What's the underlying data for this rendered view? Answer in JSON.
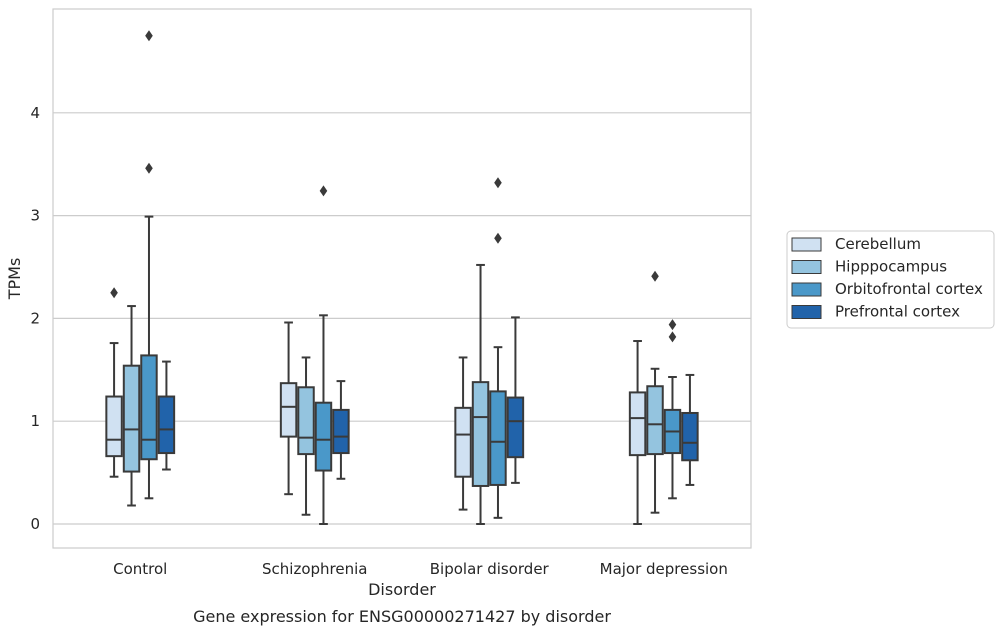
{
  "chart_data": {
    "type": "box",
    "xlabel": "Disorder",
    "ylabel": "TPMs",
    "caption": "Gene expression for ENSG00000271427 by disorder",
    "ylim": [
      -0.23,
      5.0
    ],
    "yticks": [
      0,
      1,
      2,
      3,
      4
    ],
    "grid": "horizontal",
    "legend_position": "right",
    "categories": [
      "Control",
      "Schizophrenia",
      "Bipolar disorder",
      "Major depression"
    ],
    "series": [
      {
        "name": "Cerebellum",
        "color": "#d0e1f2",
        "boxes": [
          {
            "whisker_low": 0.46,
            "q1": 0.66,
            "median": 0.82,
            "q3": 1.24,
            "whisker_high": 1.76,
            "outliers": [
              2.25
            ]
          },
          {
            "whisker_low": 0.29,
            "q1": 0.85,
            "median": 1.14,
            "q3": 1.37,
            "whisker_high": 1.96,
            "outliers": []
          },
          {
            "whisker_low": 0.14,
            "q1": 0.46,
            "median": 0.87,
            "q3": 1.13,
            "whisker_high": 1.62,
            "outliers": []
          },
          {
            "whisker_low": 0.0,
            "q1": 0.67,
            "median": 1.03,
            "q3": 1.28,
            "whisker_high": 1.78,
            "outliers": []
          }
        ]
      },
      {
        "name": "Hipppocampus",
        "color": "#94c4df",
        "boxes": [
          {
            "whisker_low": 0.18,
            "q1": 0.51,
            "median": 0.92,
            "q3": 1.54,
            "whisker_high": 2.12,
            "outliers": []
          },
          {
            "whisker_low": 0.09,
            "q1": 0.68,
            "median": 0.84,
            "q3": 1.33,
            "whisker_high": 1.62,
            "outliers": []
          },
          {
            "whisker_low": 0.0,
            "q1": 0.37,
            "median": 1.04,
            "q3": 1.38,
            "whisker_high": 2.52,
            "outliers": []
          },
          {
            "whisker_low": 0.11,
            "q1": 0.68,
            "median": 0.97,
            "q3": 1.34,
            "whisker_high": 1.51,
            "outliers": [
              2.41
            ]
          }
        ]
      },
      {
        "name": "Orbitofrontal cortex",
        "color": "#4a98c9",
        "boxes": [
          {
            "whisker_low": 0.25,
            "q1": 0.63,
            "median": 0.82,
            "q3": 1.64,
            "whisker_high": 2.99,
            "outliers": [
              3.46,
              4.75
            ]
          },
          {
            "whisker_low": 0.0,
            "q1": 0.52,
            "median": 0.82,
            "q3": 1.18,
            "whisker_high": 2.03,
            "outliers": [
              3.24
            ]
          },
          {
            "whisker_low": 0.06,
            "q1": 0.38,
            "median": 0.8,
            "q3": 1.29,
            "whisker_high": 1.72,
            "outliers": [
              2.78,
              3.32
            ]
          },
          {
            "whisker_low": 0.25,
            "q1": 0.69,
            "median": 0.9,
            "q3": 1.11,
            "whisker_high": 1.43,
            "outliers": [
              1.82,
              1.94
            ]
          }
        ]
      },
      {
        "name": "Prefrontal cortex",
        "color": "#2163aa",
        "boxes": [
          {
            "whisker_low": 0.53,
            "q1": 0.69,
            "median": 0.92,
            "q3": 1.24,
            "whisker_high": 1.58,
            "outliers": []
          },
          {
            "whisker_low": 0.44,
            "q1": 0.69,
            "median": 0.85,
            "q3": 1.11,
            "whisker_high": 1.39,
            "outliers": []
          },
          {
            "whisker_low": 0.4,
            "q1": 0.65,
            "median": 1.0,
            "q3": 1.23,
            "whisker_high": 2.01,
            "outliers": []
          },
          {
            "whisker_low": 0.38,
            "q1": 0.62,
            "median": 0.79,
            "q3": 1.08,
            "whisker_high": 1.45,
            "outliers": []
          }
        ]
      }
    ]
  }
}
